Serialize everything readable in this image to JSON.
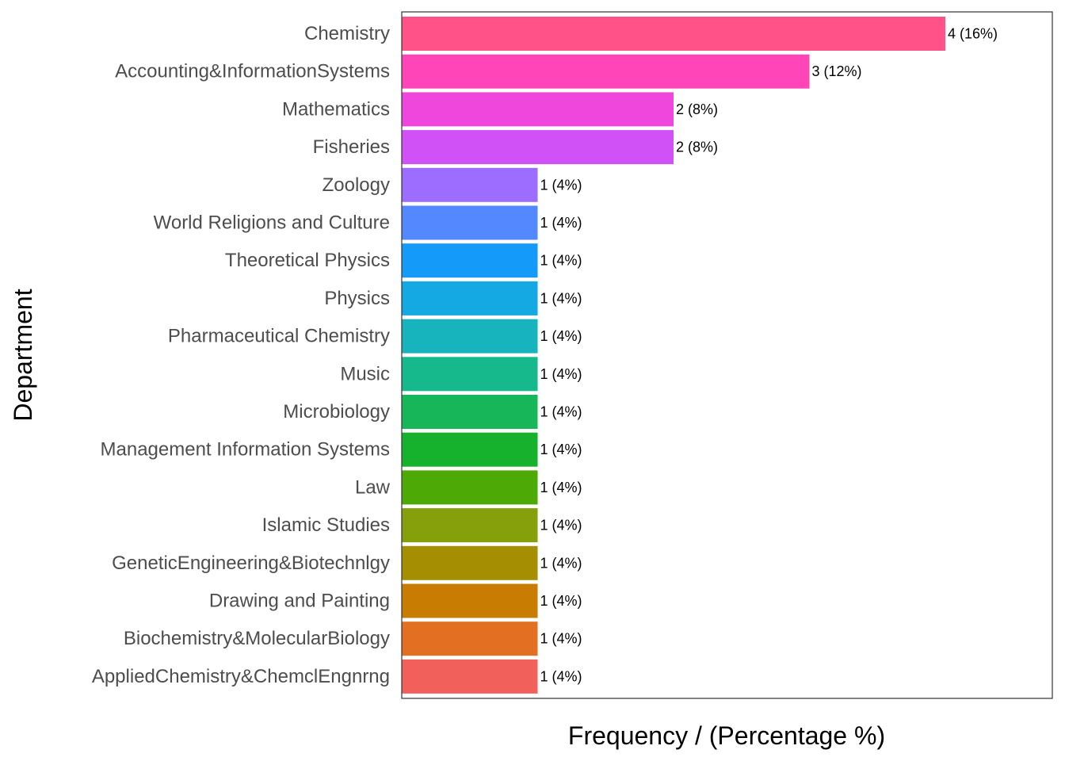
{
  "chart_data": {
    "type": "bar",
    "orientation": "horizontal",
    "xlabel": "Frequency / (Percentage %)",
    "ylabel": "Department",
    "xlim": [
      0,
      4.2
    ],
    "grid": false,
    "legend": "none",
    "categories": [
      "Chemistry",
      "Accounting&InformationSystems",
      "Mathematics",
      "Fisheries",
      "Zoology",
      "World Religions and Culture",
      "Theoretical Physics",
      "Physics",
      "Pharmaceutical Chemistry",
      "Music",
      "Microbiology",
      "Management Information Systems",
      "Law",
      "Islamic Studies",
      "GeneticEngineering&Biotechnlgy",
      "Drawing and Painting",
      "Biochemistry&MolecularBiology",
      "AppliedChemistry&ChemclEngnrng"
    ],
    "values": [
      4,
      3,
      2,
      2,
      1,
      1,
      1,
      1,
      1,
      1,
      1,
      1,
      1,
      1,
      1,
      1,
      1,
      1
    ],
    "data_labels": [
      "4 (16%)",
      "3 (12%)",
      "2 (8%)",
      "2 (8%)",
      "1 (4%)",
      "1 (4%)",
      "1 (4%)",
      "1 (4%)",
      "1 (4%)",
      "1 (4%)",
      "1 (4%)",
      "1 (4%)",
      "1 (4%)",
      "1 (4%)",
      "1 (4%)",
      "1 (4%)",
      "1 (4%)",
      "1 (4%)"
    ],
    "colors": [
      "#FF5289",
      "#FF45B8",
      "#EF46DC",
      "#D052F7",
      "#9C6DFF",
      "#5388FF",
      "#149BF9",
      "#14A9E2",
      "#17B4BE",
      "#16B98C",
      "#17B759",
      "#16B12D",
      "#4DA905",
      "#85A00A",
      "#A68E02",
      "#C87D02",
      "#E26F22",
      "#F2605C"
    ]
  }
}
